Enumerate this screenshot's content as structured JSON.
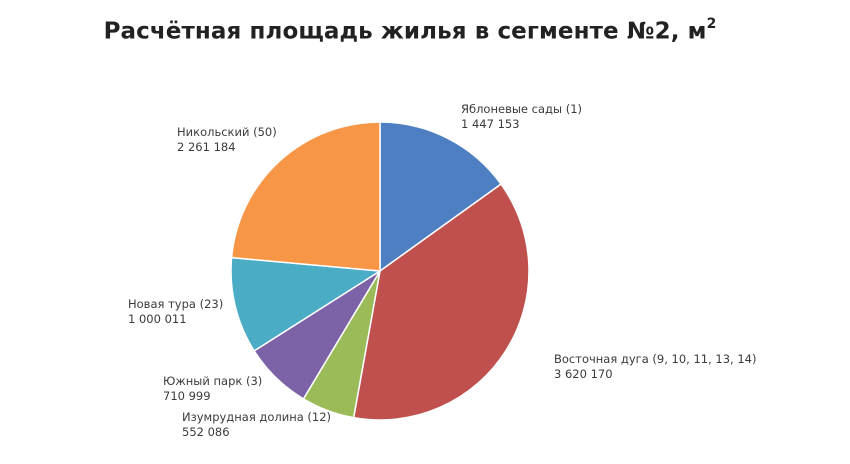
{
  "chart_data": {
    "type": "pie",
    "title": "Расчётная площадь жилья в сегменте №2, м",
    "title_superscript": "2",
    "slices": [
      {
        "name": "Яблоневые сады (1)",
        "value": 1447153,
        "value_label": "1 447 153",
        "color": "#4e7fc2"
      },
      {
        "name": "Восточная дуга (9, 10, 11, 13, 14)",
        "value": 3620170,
        "value_label": "3 620 170",
        "color": "#c0504d"
      },
      {
        "name": "Изумрудная долина (12)",
        "value": 552086,
        "value_label": "552 086",
        "color": "#9bbb59"
      },
      {
        "name": "Южный парк (3)",
        "value": 710999,
        "value_label": "710 999",
        "color": "#7c62a6"
      },
      {
        "name": "Новая тура (23)",
        "value": 1000011,
        "value_label": "1 000 011",
        "color": "#4bacc6"
      },
      {
        "name": "Никольский (50)",
        "value": 2261184,
        "value_label": "2 261 184",
        "color": "#f79646"
      }
    ],
    "start_angle": "top (12 o'clock)",
    "direction": "clockwise",
    "legend": "none (direct labels)"
  }
}
